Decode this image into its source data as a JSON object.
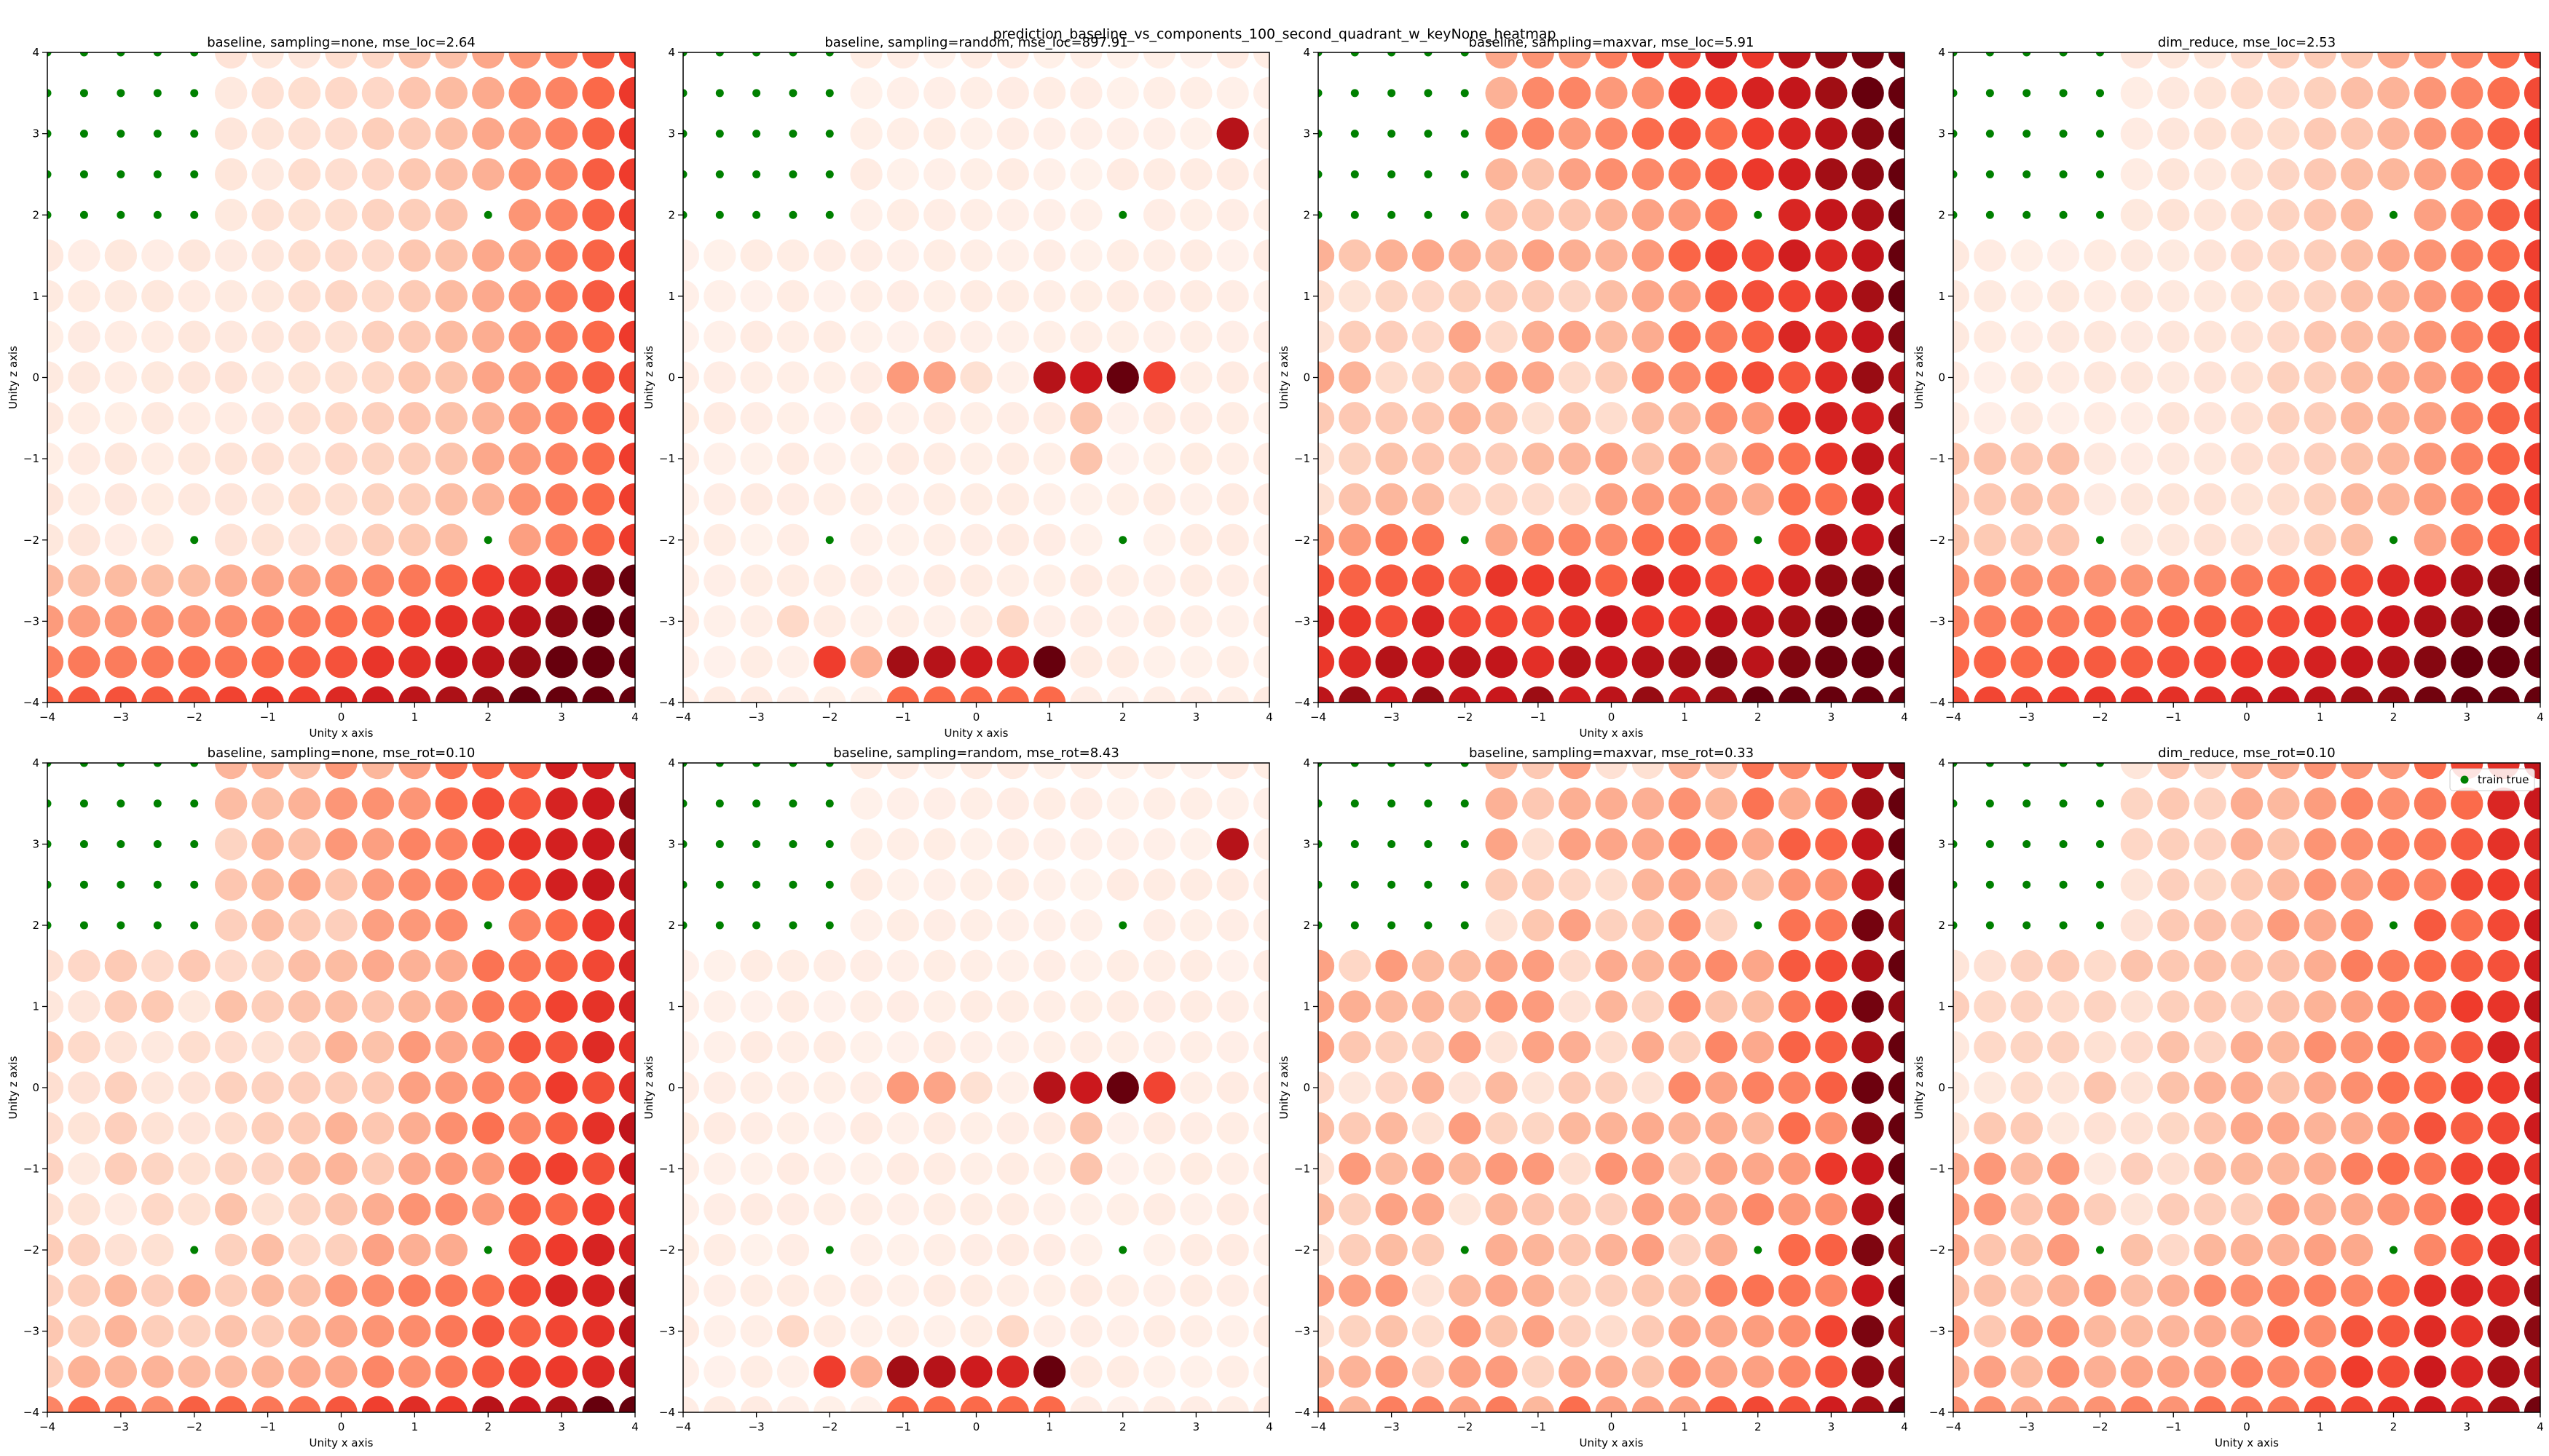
{
  "figure": {
    "suptitle": "prediction_baseline_vs_components_100_second_quadrant_w_keyNone_heatmap"
  },
  "legend": {
    "label": "train true",
    "color": "#008000",
    "placement": "top-right of last subplot"
  },
  "colormap": {
    "name": "Reds",
    "stops": [
      "#fff5f0",
      "#fee0d2",
      "#fcbba1",
      "#fc9272",
      "#fb6a4a",
      "#ef3b2c",
      "#cb181d",
      "#a50f15",
      "#67000d"
    ]
  },
  "chart_data": [
    {
      "type": "scatter",
      "title": "baseline, sampling=none, mse_loc=2.64",
      "xlabel": "Unity x axis",
      "ylabel": "Unity z axis",
      "xlim": [
        -4,
        4
      ],
      "ylim": [
        -4,
        4
      ],
      "xticks": [
        "−4",
        "−3",
        "−2",
        "−1",
        "0",
        "1",
        "2",
        "3",
        "4"
      ],
      "yticks": [
        "−4",
        "−3",
        "−2",
        "−1",
        "0",
        "1",
        "2",
        "3",
        "4"
      ],
      "grid": false,
      "train_points": [
        [
          -4,
          4
        ],
        [
          -3.5,
          4
        ],
        [
          -3,
          4
        ],
        [
          -2.5,
          4
        ],
        [
          -2,
          4
        ],
        [
          -4,
          3.5
        ],
        [
          -3.5,
          3.5
        ],
        [
          -3,
          3.5
        ],
        [
          -2.5,
          3.5
        ],
        [
          -2,
          3.5
        ],
        [
          -4,
          3
        ],
        [
          -3.5,
          3
        ],
        [
          -3,
          3
        ],
        [
          -2.5,
          3
        ],
        [
          -2,
          3
        ],
        [
          -4,
          2.5
        ],
        [
          -3.5,
          2.5
        ],
        [
          -3,
          2.5
        ],
        [
          -2.5,
          2.5
        ],
        [
          -2,
          2.5
        ],
        [
          -4,
          2
        ],
        [
          -3.5,
          2
        ],
        [
          -3,
          2
        ],
        [
          -2.5,
          2
        ],
        [
          -2,
          2
        ],
        [
          2,
          2
        ],
        [
          -2,
          -2
        ],
        [
          2,
          -2
        ]
      ],
      "error_grid": {
        "x": [
          -4,
          -3.5,
          -3,
          -2.5,
          -2,
          -1.5,
          -1,
          -0.5,
          0,
          0.5,
          1,
          1.5,
          2,
          2.5,
          3,
          3.5,
          4
        ],
        "y": [
          4,
          3.5,
          3,
          2.5,
          2,
          1.5,
          1,
          0.5,
          0,
          -0.5,
          -1,
          -1.5,
          -2,
          -2.5,
          -3,
          -3.5,
          -4
        ],
        "pattern": "low error near training region; error rises toward right edge and bottom rows"
      }
    },
    {
      "type": "scatter",
      "title": "baseline, sampling=random, mse_loc=897.91",
      "xlabel": "Unity x axis",
      "ylabel": "Unity z axis",
      "xlim": [
        -4,
        4
      ],
      "ylim": [
        -4,
        4
      ],
      "xticks": [
        "−4",
        "−3",
        "−2",
        "−1",
        "0",
        "1",
        "2",
        "3",
        "4"
      ],
      "yticks": [
        "−4",
        "−3",
        "−2",
        "−1",
        "0",
        "1",
        "2",
        "3",
        "4"
      ],
      "grid": false,
      "train_points": "same as first subplot",
      "error_grid": {
        "pattern": "mostly very low; hotspots at (3.5,3), row z=0 for x=-1..2.5, and row z=-3.5 for x=-2..1"
      }
    },
    {
      "type": "scatter",
      "title": "baseline, sampling=maxvar, mse_loc=5.91",
      "xlabel": "Unity x axis",
      "ylabel": "Unity z axis",
      "xlim": [
        -4,
        4
      ],
      "ylim": [
        -4,
        4
      ],
      "xticks": [
        "−4",
        "−3",
        "−2",
        "−1",
        "0",
        "1",
        "2",
        "3",
        "4"
      ],
      "yticks": [
        "−4",
        "−3",
        "−2",
        "−1",
        "0",
        "1",
        "2",
        "3",
        "4"
      ],
      "grid": false,
      "train_points": "same as first subplot",
      "error_grid": {
        "pattern": "moderate error across grid; high error on top-right and the bottom three rows"
      }
    },
    {
      "type": "scatter",
      "title": "dim_reduce, mse_loc=2.53",
      "xlabel": "",
      "ylabel": "Unity z axis",
      "xlim": [
        -4,
        4
      ],
      "ylim": [
        -4,
        4
      ],
      "xticks": [
        "−4",
        "−3",
        "−2",
        "−1",
        "0",
        "1",
        "2",
        "3",
        "4"
      ],
      "yticks": [
        "−4",
        "−3",
        "−2",
        "−1",
        "0",
        "1",
        "2",
        "3",
        "4"
      ],
      "grid": false,
      "train_points": "same as first subplot",
      "error_grid": {
        "pattern": "low error near training region; rising toward right edge and bottom rows"
      }
    },
    {
      "type": "scatter",
      "title": "baseline, sampling=none, mse_rot=0.10",
      "xlabel": "Unity x axis",
      "ylabel": "Unity z axis",
      "xlim": [
        -4,
        4
      ],
      "ylim": [
        -4,
        4
      ],
      "xticks": [
        "−4",
        "−3",
        "−2",
        "−1",
        "0",
        "1",
        "2",
        "3",
        "4"
      ],
      "yticks": [
        "−4",
        "−3",
        "−2",
        "−1",
        "0",
        "1",
        "2",
        "3",
        "4"
      ],
      "grid": false,
      "train_points": "same as first subplot",
      "error_grid": {
        "pattern": "error increasing toward right columns and bottom row"
      }
    },
    {
      "type": "scatter",
      "title": "baseline, sampling=random, mse_rot=8.43",
      "xlabel": "",
      "ylabel": "Unity z axis",
      "xlim": [
        -4,
        4
      ],
      "ylim": [
        -4,
        4
      ],
      "xticks": [
        "−4",
        "−3",
        "−2",
        "−1",
        "0",
        "1",
        "2",
        "3",
        "4"
      ],
      "yticks": [
        "−4",
        "−3",
        "−2",
        "−1",
        "0",
        "1",
        "2",
        "3",
        "4"
      ],
      "grid": false,
      "train_points": "same as first subplot",
      "error_grid": {
        "pattern": "same hotspot layout as the random mse_loc panel"
      }
    },
    {
      "type": "scatter",
      "title": "baseline, sampling=maxvar, mse_rot=0.33",
      "xlabel": "Unity x axis",
      "ylabel": "Unity z axis",
      "xlim": [
        -4,
        4
      ],
      "ylim": [
        -4,
        4
      ],
      "xticks": [
        "−4",
        "−3",
        "−2",
        "−1",
        "0",
        "1",
        "2",
        "3",
        "4"
      ],
      "yticks": [
        "−4",
        "−3",
        "−2",
        "−1",
        "0",
        "1",
        "2",
        "3",
        "4"
      ],
      "grid": false,
      "train_points": "same as first subplot",
      "error_grid": {
        "pattern": "moderate error; strongest at rightmost columns"
      }
    },
    {
      "type": "scatter",
      "title": "dim_reduce, mse_rot=0.10",
      "xlabel": "Unity x axis",
      "ylabel": "Unity z axis",
      "xlim": [
        -4,
        4
      ],
      "ylim": [
        -4,
        4
      ],
      "xticks": [
        "−4",
        "−3",
        "−2",
        "−1",
        "0",
        "1",
        "2",
        "3",
        "4"
      ],
      "yticks": [
        "−4",
        "−3",
        "−2",
        "−1",
        "0",
        "1",
        "2",
        "3",
        "4"
      ],
      "grid": false,
      "legend": "train true",
      "train_points": "same as first subplot",
      "error_grid": {
        "pattern": "error increasing toward right columns and bottom rows"
      }
    }
  ]
}
